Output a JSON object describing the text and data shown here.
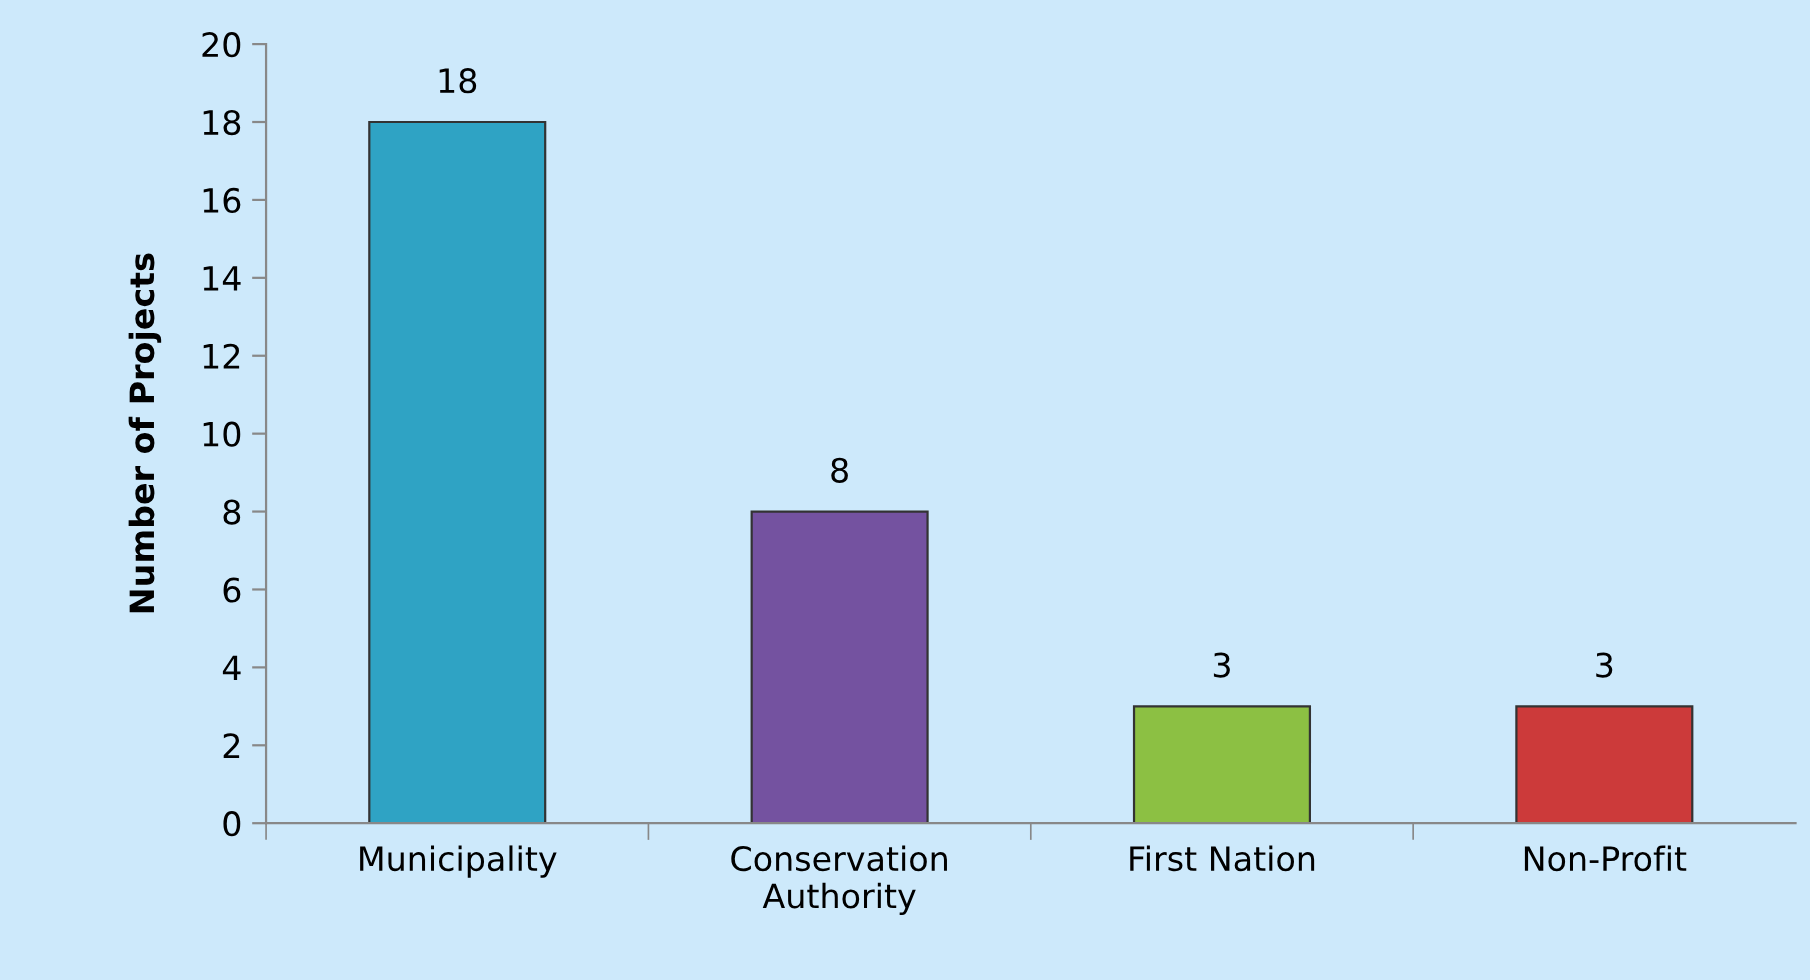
{
  "chart_data": {
    "type": "bar",
    "ylabel": "Number of Projects",
    "categories": [
      "Municipality",
      "Conservation\nAuthority",
      "First Nation",
      "Non-Profit"
    ],
    "values": [
      18,
      8,
      3,
      3
    ],
    "colors": [
      "#2fa3c4",
      "#7452a0",
      "#8cc043",
      "#cc3a3a"
    ],
    "ylim": [
      0,
      20
    ],
    "yticks": [
      0,
      2,
      4,
      6,
      8,
      10,
      12,
      14,
      16,
      18,
      20
    ],
    "data_labels": true,
    "grid": false,
    "legend": false
  }
}
